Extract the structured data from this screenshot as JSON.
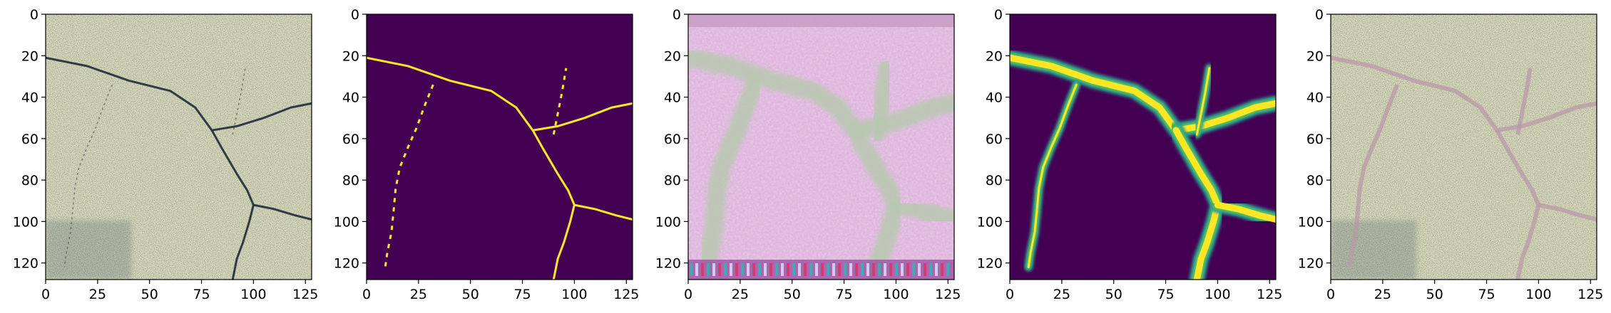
{
  "panels": [
    {
      "id": "p1",
      "kind": "photo"
    },
    {
      "id": "p2",
      "kind": "binary-mask"
    },
    {
      "id": "p3",
      "kind": "artifact-texture"
    },
    {
      "id": "p4",
      "kind": "soft-mask"
    },
    {
      "id": "p5",
      "kind": "overlay"
    }
  ],
  "axes": {
    "x_ticks": [
      0,
      25,
      50,
      75,
      100,
      125
    ],
    "y_ticks": [
      0,
      20,
      40,
      60,
      80,
      100,
      120
    ],
    "extent": [
      0,
      128
    ]
  },
  "colors": {
    "photo_bg": "#dcdcb8",
    "photo_dark": "#202a3a",
    "viridis_bg": "#440154",
    "viridis_teal": "#21918c",
    "viridis_green": "#5ec962",
    "viridis_yellow": "#fde725",
    "overlay_crack": "#b89aa8",
    "texture_pink": "#d8b0d8",
    "texture_green": "#b8c8b0"
  }
}
